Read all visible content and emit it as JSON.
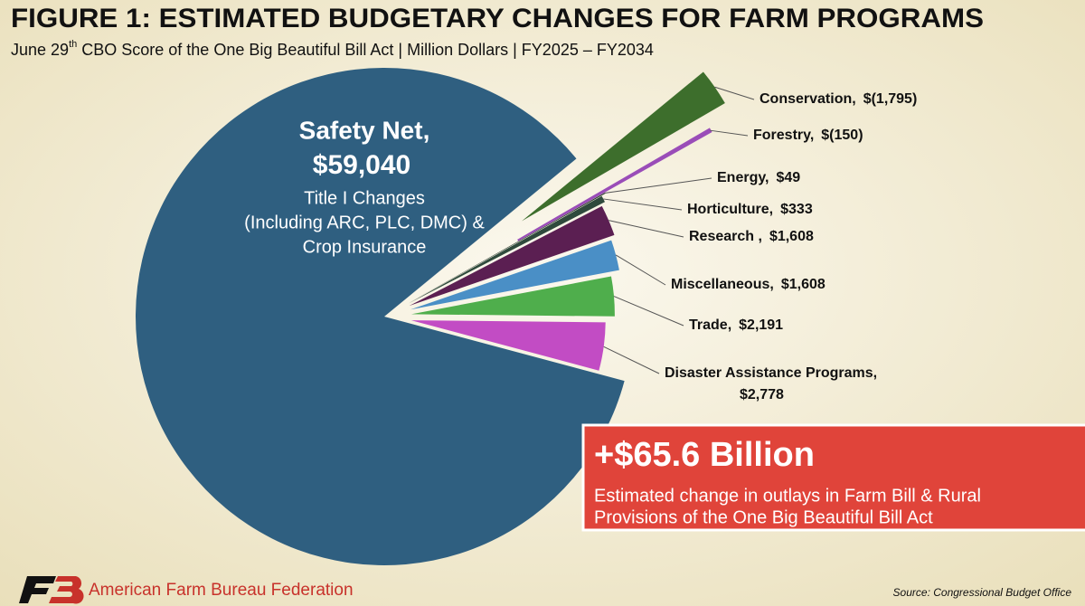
{
  "chart_data": {
    "type": "pie",
    "title": "FIGURE 1: ESTIMATED BUDGETARY CHANGES FOR FARM PROGRAMS",
    "subtitle": {
      "before": "June 29",
      "sup": "th",
      "after": " CBO Score of the One Big Beautiful Bill Act | Million Dollars | FY2025 – FY2034"
    },
    "categories": [
      "Safety Net,",
      "Conservation,",
      "Forestry,",
      "Energy,",
      "Horticulture,",
      "Research ,",
      "Miscellaneous,",
      "Trade,",
      "Disaster Assistance Programs,"
    ],
    "values": [
      59040,
      -1795,
      -150,
      49,
      333,
      1608,
      1608,
      2191,
      2778
    ],
    "value_labels": [
      "$59,040",
      "$(1,795)",
      "$(150)",
      "$49",
      "$333",
      "$1,608",
      "$1,608",
      "$2,191",
      "$2,778"
    ],
    "colors": [
      "#2f5f80",
      "#3d6e2c",
      "#9a4db8",
      "#28392b",
      "#2f4a3c",
      "#5b1f52",
      "#4a8fc6",
      "#4fae4c",
      "#c24cc4"
    ],
    "safety_net_note": [
      "Title I Changes",
      "(Including ARC, PLC, DMC) &",
      "Crop Insurance"
    ],
    "callout": {
      "headline": "+$65.6 Billion",
      "lines": [
        "Estimated change in outlays in Farm Bill & Rural",
        "Provisions of the One Big Beautiful Bill Act"
      ]
    },
    "footer": {
      "organization": "American Farm Bureau Federation",
      "source": "Source: Congressional Budget Office"
    }
  }
}
